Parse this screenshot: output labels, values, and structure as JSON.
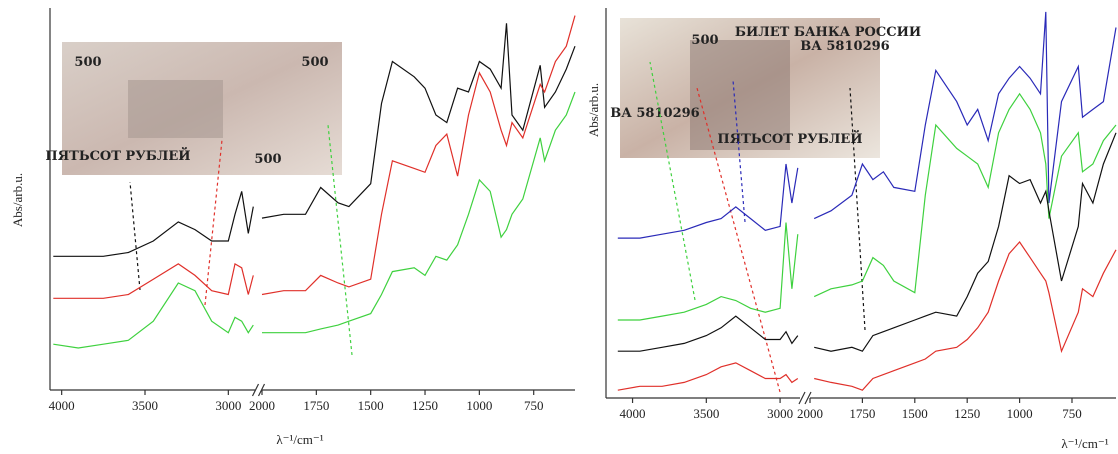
{
  "chart_data": [
    {
      "type": "line",
      "x_label": "λ⁻¹/cm⁻¹",
      "y_label": "Abs/arb.u.",
      "x_segments": [
        {
          "xlim": [
            4070,
            2840
          ],
          "xticks": [
            4000,
            3500,
            3000
          ]
        },
        {
          "xlim": [
            2000,
            560
          ],
          "xticks": [
            2000,
            1750,
            1500,
            1250,
            1000,
            750
          ]
        }
      ],
      "ylim": [
        0,
        10
      ],
      "x": [
        4050,
        3900,
        3750,
        3600,
        3450,
        3300,
        3200,
        3100,
        3000,
        2960,
        2920,
        2880,
        2850,
        2000,
        1900,
        1800,
        1730,
        1650,
        1600,
        1500,
        1450,
        1400,
        1300,
        1250,
        1200,
        1150,
        1100,
        1050,
        1000,
        950,
        900,
        875,
        850,
        800,
        720,
        700,
        650,
        600,
        560
      ],
      "series": [
        {
          "color": "#111111",
          "values": [
            3.5,
            3.5,
            3.5,
            3.6,
            3.9,
            4.4,
            4.2,
            3.9,
            3.9,
            4.6,
            5.2,
            4.1,
            4.8,
            4.5,
            4.6,
            4.6,
            5.3,
            4.9,
            4.8,
            5.4,
            7.5,
            8.6,
            8.2,
            7.9,
            7.2,
            7.0,
            7.9,
            7.8,
            8.6,
            8.4,
            7.9,
            9.6,
            7.2,
            6.8,
            8.5,
            7.4,
            7.8,
            8.4,
            9.0
          ]
        },
        {
          "color": "#e0302a",
          "values": [
            2.4,
            2.4,
            2.4,
            2.5,
            2.9,
            3.3,
            3.0,
            2.6,
            2.5,
            3.3,
            3.2,
            2.5,
            3.0,
            2.5,
            2.6,
            2.6,
            3.0,
            2.8,
            2.7,
            2.9,
            4.6,
            6.0,
            5.8,
            5.7,
            6.4,
            6.7,
            5.6,
            7.2,
            8.3,
            7.8,
            6.8,
            6.4,
            7.0,
            6.6,
            8.0,
            7.8,
            8.6,
            9.0,
            9.8
          ]
        },
        {
          "color": "#3fd13f",
          "values": [
            1.2,
            1.1,
            1.2,
            1.3,
            1.8,
            2.8,
            2.6,
            1.8,
            1.5,
            1.9,
            1.8,
            1.5,
            1.7,
            1.5,
            1.5,
            1.5,
            1.6,
            1.7,
            1.8,
            2.0,
            2.5,
            3.1,
            3.2,
            3.0,
            3.5,
            3.4,
            3.8,
            4.6,
            5.5,
            5.2,
            4.0,
            4.2,
            4.6,
            5.0,
            6.6,
            6.0,
            6.8,
            7.2,
            7.8
          ]
        }
      ],
      "inset_texts": [
        "500",
        "500",
        "ПЯТЬСОТ РУБЛЕЙ",
        "500"
      ]
    },
    {
      "type": "line",
      "x_label": "λ⁻¹/cm⁻¹",
      "y_label": "Abs/arb.u.",
      "x_segments": [
        {
          "xlim": [
            4180,
            2865
          ],
          "xticks": [
            4000,
            3500,
            3000
          ]
        },
        {
          "xlim": [
            2000,
            540
          ],
          "xticks": [
            2000,
            1750,
            1500,
            1250,
            1000,
            750
          ]
        }
      ],
      "ylim": [
        0,
        10
      ],
      "x": [
        4100,
        3950,
        3800,
        3650,
        3500,
        3400,
        3300,
        3200,
        3100,
        3000,
        2960,
        2920,
        2880,
        1980,
        1900,
        1800,
        1750,
        1700,
        1650,
        1600,
        1500,
        1450,
        1400,
        1300,
        1250,
        1200,
        1150,
        1100,
        1050,
        1000,
        950,
        900,
        875,
        860,
        800,
        720,
        700,
        650,
        600,
        540
      ],
      "series": [
        {
          "color": "#2a2ab8",
          "values": [
            4.1,
            4.1,
            4.2,
            4.3,
            4.5,
            4.6,
            4.9,
            4.6,
            4.3,
            4.4,
            6.0,
            5.0,
            5.9,
            4.6,
            4.8,
            5.2,
            6.0,
            5.6,
            5.8,
            5.4,
            5.3,
            7.0,
            8.4,
            7.6,
            7.0,
            7.4,
            6.6,
            7.8,
            8.2,
            8.5,
            8.2,
            7.8,
            9.9,
            5.0,
            7.6,
            8.5,
            7.2,
            7.4,
            7.6,
            9.5
          ]
        },
        {
          "color": "#3fd13f",
          "values": [
            2.0,
            2.0,
            2.1,
            2.2,
            2.4,
            2.6,
            2.5,
            2.3,
            2.2,
            2.3,
            4.5,
            2.8,
            4.2,
            2.6,
            2.8,
            2.9,
            3.0,
            3.6,
            3.4,
            3.0,
            2.7,
            5.2,
            7.0,
            6.4,
            6.2,
            6.0,
            5.4,
            6.8,
            7.4,
            7.8,
            7.4,
            6.8,
            6.0,
            4.6,
            6.2,
            6.8,
            5.8,
            6.0,
            6.6,
            7.0
          ]
        },
        {
          "color": "#111111",
          "values": [
            1.2,
            1.2,
            1.3,
            1.4,
            1.6,
            1.8,
            2.1,
            1.8,
            1.5,
            1.5,
            1.7,
            1.4,
            1.6,
            1.3,
            1.2,
            1.3,
            1.2,
            1.6,
            1.7,
            1.8,
            2.0,
            2.1,
            2.2,
            2.1,
            2.6,
            3.2,
            3.5,
            4.4,
            5.7,
            5.5,
            5.6,
            5.0,
            5.3,
            4.8,
            3.0,
            4.4,
            5.5,
            5.0,
            6.0,
            6.8
          ]
        },
        {
          "color": "#e0302a",
          "values": [
            0.2,
            0.3,
            0.3,
            0.4,
            0.6,
            0.8,
            0.9,
            0.7,
            0.5,
            0.5,
            0.6,
            0.4,
            0.5,
            0.5,
            0.4,
            0.3,
            0.2,
            0.5,
            0.6,
            0.7,
            0.9,
            1.0,
            1.2,
            1.3,
            1.5,
            1.8,
            2.2,
            3.0,
            3.7,
            4.0,
            3.6,
            3.2,
            3.0,
            2.7,
            1.2,
            2.2,
            2.8,
            2.6,
            3.2,
            3.8
          ]
        }
      ],
      "inset_texts": [
        "500",
        "БИЛЕТ БАНКА РОССИИ",
        "ВА 5810296",
        "ВА 5810296",
        "ПЯТЬСОТ РУБЛЕЙ"
      ]
    }
  ]
}
